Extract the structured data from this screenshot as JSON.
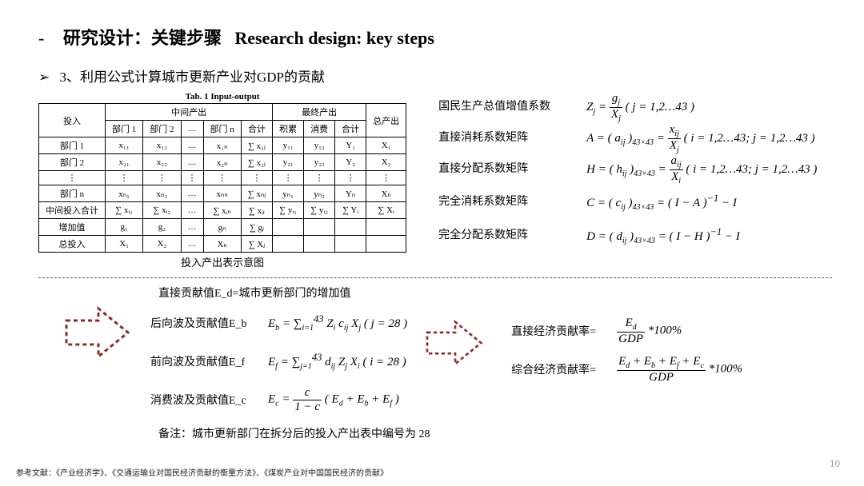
{
  "title": {
    "dash": "-",
    "cn": "研究设计：关键步骤",
    "en": "Research design: key steps"
  },
  "subhead": {
    "marker": "➢",
    "text": "3、利用公式计算城市更新产业对GDP的贡献"
  },
  "table": {
    "caption": "Tab. 1   Input-output",
    "footer": "投入产出表示意图",
    "h_input": "投入",
    "h_mid": "中间产出",
    "h_final": "最终产出",
    "h_total": "总产出",
    "cols_mid": [
      "部门 1",
      "部门 2",
      "…",
      "部门 n",
      "合计"
    ],
    "cols_final": [
      "积累",
      "消费",
      "合计"
    ],
    "rows": [
      {
        "label": "部门 1",
        "cells": [
          "x₁₁",
          "x₁₂",
          "…",
          "x₁ₙ",
          "∑ x₁ⱼ",
          "y₁₁",
          "y₁₂",
          "Y₁",
          "X₁"
        ]
      },
      {
        "label": "部门 2",
        "cells": [
          "x₂₁",
          "x₂₂",
          "…",
          "x₂ₙ",
          "∑ x₂ⱼ",
          "y₂₁",
          "y₂₂",
          "Y₂",
          "X₂"
        ]
      },
      {
        "label": "⋮",
        "cells": [
          "⋮",
          "⋮",
          "⋮",
          "⋮",
          "⋮",
          "⋮",
          "⋮",
          "⋮",
          "⋮"
        ]
      },
      {
        "label": "部门 n",
        "cells": [
          "xₙ₁",
          "xₙ₂",
          "…",
          "xₙₙ",
          "∑ xₙⱼ",
          "yₙ₁",
          "yₙ₂",
          "Yₙ",
          "Xₙ"
        ]
      },
      {
        "label": "中间投入合计",
        "cells": [
          "∑ xᵢ₁",
          "∑ xᵢ₂",
          "…",
          "∑ xᵢₙ",
          "∑ xᵢⱼ",
          "∑ yᵢ₁",
          "∑ yᵢ₂",
          "∑ Yᵢ",
          "∑ Xᵢ"
        ]
      },
      {
        "label": "增加值",
        "cells": [
          "g₁",
          "g₂",
          "…",
          "gₙ",
          "∑ gⱼ",
          "",
          "",
          "",
          ""
        ]
      },
      {
        "label": "总投入",
        "cells": [
          "X₁",
          "X₂",
          "…",
          "Xₙ",
          "∑ Xⱼ",
          "",
          "",
          "",
          ""
        ]
      }
    ]
  },
  "defs": [
    {
      "label": "国民生产总值增值系数",
      "formula_html": "Z<sub>j</sub> = <span class='frac'><span class='num'>g<sub>j</sub></span><span class='den'>X<sub>j</sub></span></span> ( j = 1,2…43 )"
    },
    {
      "label": "直接消耗系数矩阵",
      "formula_html": "A = ( a<sub>ij</sub> )<sub>43×43</sub> = <span class='frac'><span class='num'>x<sub>ij</sub></span><span class='den'>X<sub>j</sub></span></span> ( i = 1,2…43; j = 1,2…43 )"
    },
    {
      "label": "直接分配系数矩阵",
      "formula_html": "H = ( h<sub>ij</sub> )<sub>43×43</sub> = <span class='frac'><span class='num'>a<sub>ij</sub></span><span class='den'>X<sub>i</sub></span></span> ( i = 1,2…43; j = 1,2…43 )"
    },
    {
      "label": "完全消耗系数矩阵",
      "formula_html": "C = ( c<sub>ij</sub> )<sub>43×43</sub> = ( I − A )<sup>−1</sup> − I"
    },
    {
      "label": "完全分配系数矩阵",
      "formula_html": "D = ( d<sub>ij</sub> )<sub>43×43</sub> = ( I − H )<sup>−1</sup> − I"
    }
  ],
  "direct_contribution": "直接贡献值E_d=城市更新部门的增加值",
  "waves": [
    {
      "label": "后向波及贡献值E_b",
      "formula_html": "E<sub>b</sub> = <span class='sum'>∑</span><sub>i=1</sub><sup>43</sup> Z<sub>i</sub> c<sub>ij</sub> X<sub>j</sub> ( j = 28 )"
    },
    {
      "label": "前向波及贡献值E_f",
      "formula_html": "E<sub>f</sub> = <span class='sum'>∑</span><sub>j=1</sub><sup>43</sup> d<sub>ij</sub> Z<sub>j</sub> X<sub>i</sub> ( i = 28 )"
    },
    {
      "label": "消费波及贡献值E_c",
      "formula_html": "E<sub>c</sub> = <span class='frac'><span class='num'>c</span><span class='den'>1 − c</span></span> ( E<sub>d</sub> + E<sub>b</sub> + E<sub>f</sub> )"
    }
  ],
  "rates": [
    {
      "label": "直接经济贡献率=",
      "formula_html": "<span class='frac'><span class='num'>E<sub>d</sub></span><span class='den'>GDP</span></span> *100%"
    },
    {
      "label": "综合经济贡献率=",
      "formula_html": "<span class='frac'><span class='num'>E<sub>d</sub> + E<sub>b</sub> + E<sub>f</sub> + E<sub>c</sub></span><span class='den'>GDP</span></span> *100%"
    }
  ],
  "note": "备注：城市更新部门在拆分后的投入产出表中编号为 28",
  "footnote": "参考文献：《产业经济学》、《交通运输业对国民经济贡献的衡量方法》、《煤炭产业对中国国民经济的贡献》",
  "pagenum": "10",
  "arrow_color": "#8b2c2c"
}
